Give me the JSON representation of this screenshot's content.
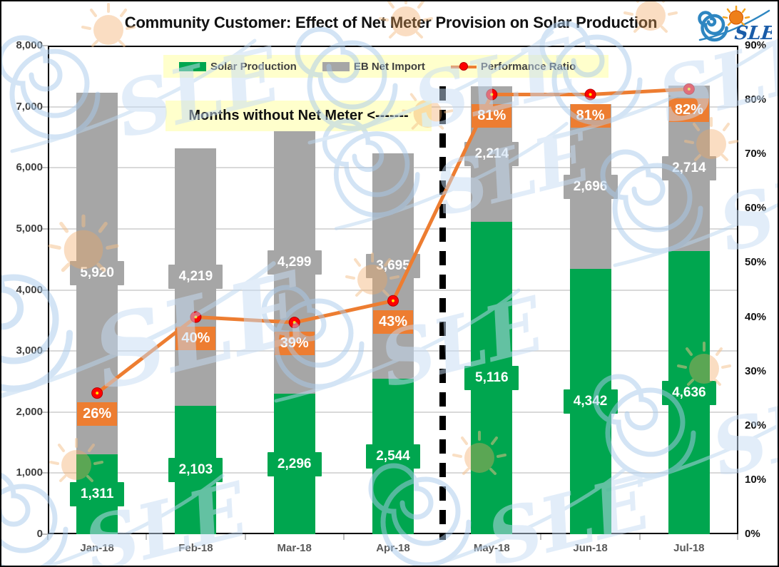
{
  "header": {
    "title": "Community Customer: Effect of Net Meter Provision on Solar Production",
    "logo_text": "SLE"
  },
  "annotation": {
    "text": "Months without Net Meter <-------",
    "background": "#FFFFCC"
  },
  "legend": {
    "background": "#FFFFCC"
  },
  "chart_data": {
    "type": "bar",
    "subtype": "stacked-bar-with-line",
    "title": "Community Customer: Effect of Net Meter Provision on Solar Production",
    "categories": [
      "Jan-18",
      "Feb-18",
      "Mar-18",
      "Apr-18",
      "May-18",
      "Jun-18",
      "Jul-18"
    ],
    "series": [
      {
        "name": "Solar Production",
        "type": "bar",
        "color": "#00A64F",
        "values": [
          1311,
          2103,
          2296,
          2544,
          5116,
          4342,
          4636
        ],
        "labels": [
          "1,311",
          "2,103",
          "2,296",
          "2,544",
          "5,116",
          "4,342",
          "4,636"
        ]
      },
      {
        "name": "EB Net Import",
        "type": "bar",
        "color": "#A6A6A6",
        "values": [
          5920,
          4219,
          4299,
          3695,
          2214,
          2696,
          2714
        ],
        "labels": [
          "5,920",
          "4,219",
          "4,299",
          "3,695",
          "2,214",
          "2,696",
          "2,714"
        ]
      },
      {
        "name": "Performance Ratio",
        "type": "line",
        "axis": "right",
        "color": "#ED7D31",
        "marker_color": "#FF0000",
        "values": [
          26,
          40,
          39,
          43,
          81,
          81,
          82
        ],
        "labels": [
          "26%",
          "40%",
          "39%",
          "43%",
          "81%",
          "81%",
          "82%"
        ]
      }
    ],
    "left_axis": {
      "min": 0,
      "max": 8000,
      "step": 1000,
      "ticks": [
        "8,000",
        "7,000",
        "6,000",
        "5,000",
        "4,000",
        "3,000",
        "2,000",
        "1,000",
        "0"
      ]
    },
    "right_axis": {
      "min": 0,
      "max": 90,
      "step": 10,
      "ticks": [
        "90%",
        "80%",
        "70%",
        "60%",
        "50%",
        "40%",
        "30%",
        "20%",
        "10%",
        "0%"
      ]
    },
    "divider_after_index": 4,
    "grid": true,
    "legend_position": "top",
    "gridline_color": "#D9D9D9"
  }
}
